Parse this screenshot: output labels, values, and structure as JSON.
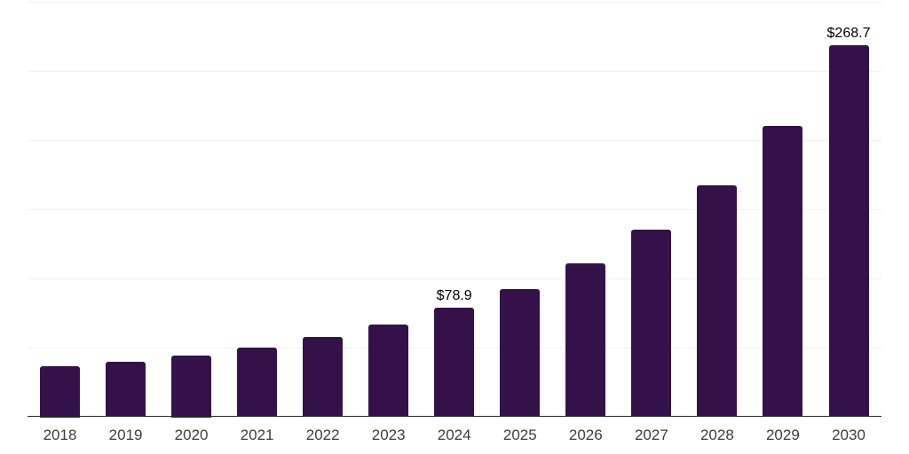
{
  "chart_data": {
    "type": "bar",
    "title": "",
    "xlabel": "",
    "ylabel": "",
    "categories": [
      "2018",
      "2019",
      "2020",
      "2021",
      "2022",
      "2023",
      "2024",
      "2025",
      "2026",
      "2027",
      "2028",
      "2029",
      "2030"
    ],
    "values": [
      36.8,
      40.2,
      44.5,
      50.4,
      57.9,
      67.0,
      78.9,
      92.8,
      111.0,
      135.4,
      167.4,
      210.6,
      268.7
    ],
    "data_labels": [
      null,
      null,
      null,
      null,
      null,
      null,
      "$78.9",
      null,
      null,
      null,
      null,
      null,
      "$268.7"
    ],
    "ylim": [
      0,
      300
    ],
    "grid_interval": 50,
    "grid": "horizontal-only",
    "legend": "none",
    "currency_prefix": "$",
    "colors": {
      "bar": "#35114A",
      "gridline": "#f1f1f1",
      "axis_line": "#262626",
      "tick_label": "#3d3d3d",
      "data_label": "#000000",
      "background": "#ffffff"
    }
  }
}
